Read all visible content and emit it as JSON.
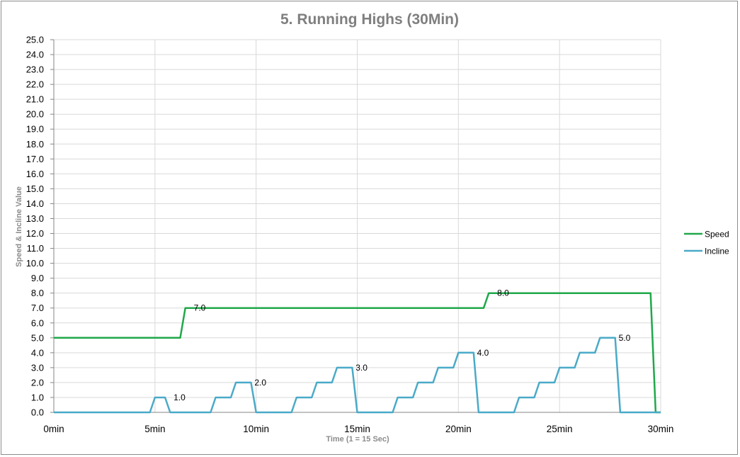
{
  "chart_data": {
    "type": "line",
    "title": "5. Running Highs (30Min)",
    "xlabel": "Time  (1 = 15 Sec)",
    "ylabel": "Speed  &  Incline Value",
    "ylim": [
      0,
      25
    ],
    "xlim": [
      0,
      120
    ],
    "y_ticks": [
      "0.0",
      "1.0",
      "2.0",
      "3.0",
      "4.0",
      "5.0",
      "6.0",
      "7.0",
      "8.0",
      "9.0",
      "10.0",
      "11.0",
      "12.0",
      "13.0",
      "14.0",
      "15.0",
      "16.0",
      "17.0",
      "18.0",
      "19.0",
      "20.0",
      "21.0",
      "22.0",
      "23.0",
      "24.0",
      "25.0"
    ],
    "x_ticks": [
      {
        "x": 0,
        "label": "0min"
      },
      {
        "x": 20,
        "label": "5min"
      },
      {
        "x": 40,
        "label": "10min"
      },
      {
        "x": 60,
        "label": "15min"
      },
      {
        "x": 80,
        "label": "20min"
      },
      {
        "x": 100,
        "label": "25min"
      },
      {
        "x": 120,
        "label": "30min"
      }
    ],
    "grid": true,
    "legend_position": "right",
    "series": [
      {
        "name": "Speed",
        "color": "#1fa84a",
        "points": [
          [
            0,
            5
          ],
          [
            25,
            5
          ],
          [
            26,
            7
          ],
          [
            85,
            7
          ],
          [
            86,
            8
          ],
          [
            118,
            8
          ],
          [
            119,
            0
          ],
          [
            120,
            0
          ]
        ],
        "labels": [
          {
            "x": 26,
            "y": 7,
            "text": "7.0"
          },
          {
            "x": 86,
            "y": 8,
            "text": "8.0"
          }
        ]
      },
      {
        "name": "Incline",
        "color": "#4aaac8",
        "points": [
          [
            0,
            0
          ],
          [
            19,
            0
          ],
          [
            20,
            1
          ],
          [
            22,
            1
          ],
          [
            23,
            0
          ],
          [
            31,
            0
          ],
          [
            32,
            1
          ],
          [
            35,
            1
          ],
          [
            36,
            2
          ],
          [
            39,
            2
          ],
          [
            40,
            0
          ],
          [
            47,
            0
          ],
          [
            48,
            1
          ],
          [
            51,
            1
          ],
          [
            52,
            2
          ],
          [
            55,
            2
          ],
          [
            56,
            3
          ],
          [
            59,
            3
          ],
          [
            60,
            0
          ],
          [
            67,
            0
          ],
          [
            68,
            1
          ],
          [
            71,
            1
          ],
          [
            72,
            2
          ],
          [
            75,
            2
          ],
          [
            76,
            3
          ],
          [
            79,
            3
          ],
          [
            80,
            4
          ],
          [
            83,
            4
          ],
          [
            84,
            0
          ],
          [
            91,
            0
          ],
          [
            92,
            1
          ],
          [
            95,
            1
          ],
          [
            96,
            2
          ],
          [
            99,
            2
          ],
          [
            100,
            3
          ],
          [
            103,
            3
          ],
          [
            104,
            4
          ],
          [
            107,
            4
          ],
          [
            108,
            5
          ],
          [
            111,
            5
          ],
          [
            112,
            0
          ],
          [
            120,
            0
          ]
        ],
        "labels": [
          {
            "x": 22,
            "y": 1,
            "text": "1.0"
          },
          {
            "x": 38,
            "y": 2,
            "text": "2.0"
          },
          {
            "x": 58,
            "y": 3,
            "text": "3.0"
          },
          {
            "x": 82,
            "y": 4,
            "text": "4.0"
          },
          {
            "x": 110,
            "y": 5,
            "text": "5.0"
          }
        ]
      }
    ]
  }
}
